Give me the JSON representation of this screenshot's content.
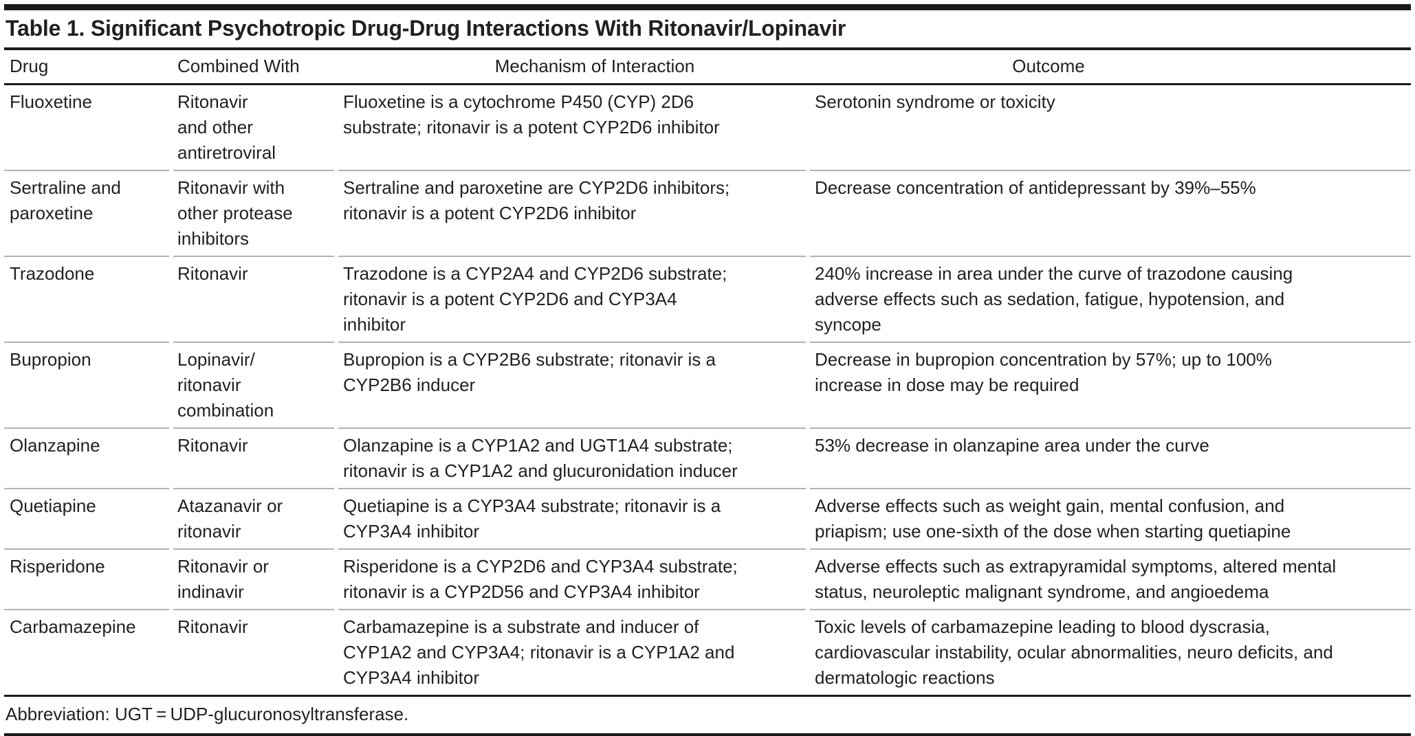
{
  "table": {
    "title": "Table 1. Significant Psychotropic Drug-Drug Interactions With Ritonavir/Lopinavir",
    "columns": {
      "drug": "Drug",
      "combined_with": "Combined With",
      "mechanism": "Mechanism of Interaction",
      "outcome": "Outcome"
    },
    "rows": [
      {
        "drug": "Fluoxetine",
        "combined_with": "Ritonavir\nand other\nantiretroviral",
        "mechanism": "Fluoxetine is a cytochrome P450 (CYP) 2D6\nsubstrate; ritonavir is a potent CYP2D6 inhibitor",
        "outcome": "Serotonin syndrome or toxicity"
      },
      {
        "drug": "Sertraline and\nparoxetine",
        "combined_with": "Ritonavir with\nother protease\ninhibitors",
        "mechanism": "Sertraline and paroxetine are CYP2D6 inhibitors;\nritonavir is a potent CYP2D6 inhibitor",
        "outcome": "Decrease concentration of antidepressant by 39%–55%"
      },
      {
        "drug": "Trazodone",
        "combined_with": "Ritonavir",
        "mechanism": "Trazodone is a CYP2A4 and CYP2D6 substrate;\nritonavir is a potent CYP2D6 and CYP3A4\ninhibitor",
        "outcome": "240% increase in area under the curve of trazodone causing\nadverse effects such as sedation, fatigue, hypotension, and\nsyncope"
      },
      {
        "drug": "Bupropion",
        "combined_with": "Lopinavir/\nritonavir\ncombination",
        "mechanism": "Bupropion is a CYP2B6 substrate; ritonavir is a\nCYP2B6 inducer",
        "outcome": "Decrease in bupropion concentration by 57%; up to 100%\nincrease in dose may be required"
      },
      {
        "drug": "Olanzapine",
        "combined_with": "Ritonavir",
        "mechanism": "Olanzapine is a CYP1A2 and UGT1A4 substrate;\nritonavir is a CYP1A2 and glucuronidation inducer",
        "outcome": "53% decrease in olanzapine area under the curve"
      },
      {
        "drug": "Quetiapine",
        "combined_with": "Atazanavir or\nritonavir",
        "mechanism": "Quetiapine is a CYP3A4 substrate; ritonavir is a\nCYP3A4 inhibitor",
        "outcome": "Adverse effects such as weight gain, mental confusion, and\npriapism; use one-sixth of the dose when starting quetiapine"
      },
      {
        "drug": "Risperidone",
        "combined_with": "Ritonavir or\nindinavir",
        "mechanism": "Risperidone is a CYP2D6 and CYP3A4 substrate;\nritonavir is a CYP2D56 and CYP3A4 inhibitor",
        "outcome": "Adverse effects such as extrapyramidal symptoms, altered mental\nstatus, neuroleptic malignant syndrome, and angioedema"
      },
      {
        "drug": "Carbamazepine",
        "combined_with": "Ritonavir",
        "mechanism": "Carbamazepine is a substrate and inducer of\nCYP1A2 and CYP3A4; ritonavir is a CYP1A2 and\nCYP3A4 inhibitor",
        "outcome": "Toxic levels of carbamazepine leading to blood dyscrasia,\ncardiovascular instability, ocular abnormalities, neuro deficits, and\ndermatologic reactions"
      }
    ],
    "footnote": "Abbreviation: UGT = UDP-glucuronosyltransferase."
  },
  "colors": {
    "text": "#231f20",
    "rule_black": "#1a1a1a",
    "rule_gray": "#b2b2b2",
    "background": "#ffffff"
  }
}
